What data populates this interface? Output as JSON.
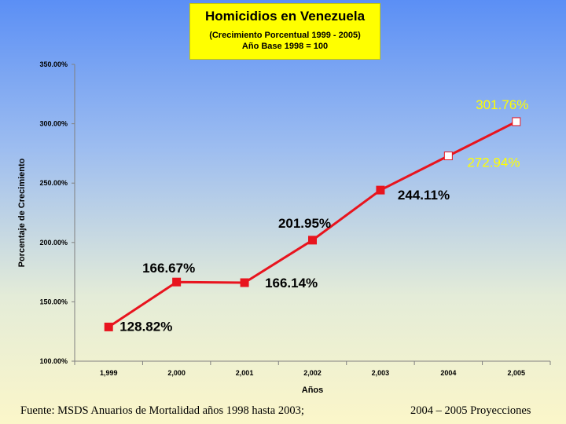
{
  "header": {
    "title": "Homicidios en Venezuela",
    "subtitle_line1": "(Crecimiento Porcentual 1999 - 2005)",
    "subtitle_line2": "Año Base 1998 = 100"
  },
  "footer": {
    "source": "Fuente: MSDS Anuarios de Mortalidad años 1998 hasta 2003;",
    "projection_note": "2004 – 2005 Proyecciones"
  },
  "chart_data": {
    "type": "line",
    "title": "Homicidios en Venezuela",
    "xlabel": "Años",
    "ylabel": "Porcentaje de Crecimiento",
    "categories": [
      "1,999",
      "2,000",
      "2,001",
      "2,002",
      "2,003",
      "2004",
      "2,005"
    ],
    "values": [
      128.82,
      166.67,
      166.14,
      201.95,
      244.11,
      272.94,
      301.76
    ],
    "data_labels": [
      "128.82%",
      "166.67%",
      "166.14%",
      "201.95%",
      "244.11%",
      "272.94%",
      "301.76%"
    ],
    "projected": [
      false,
      false,
      false,
      false,
      false,
      true,
      true
    ],
    "ylim": [
      100,
      350
    ],
    "yticks": [
      100,
      150,
      200,
      250,
      300,
      350
    ],
    "ytick_labels": [
      "100.00%",
      "150.00%",
      "200.00%",
      "250.00%",
      "300.00%",
      "350.00%"
    ],
    "grid": false,
    "colors": {
      "line": "#e8141e",
      "marker": "#e8141e",
      "projected_marker_fill": "#ffffff",
      "label_actual": "#000000",
      "label_projected": "#ffff00"
    }
  }
}
